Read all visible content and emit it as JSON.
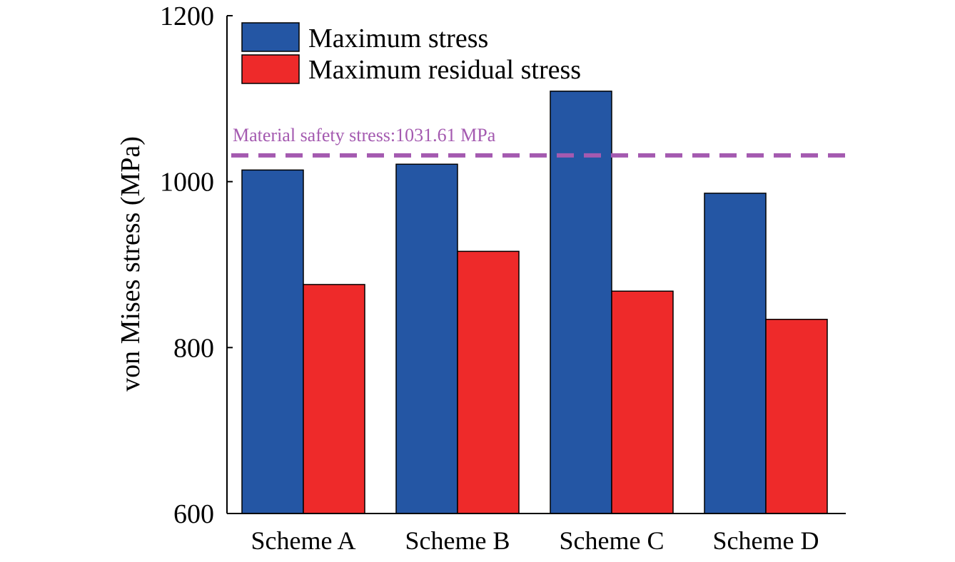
{
  "chart_data": {
    "type": "bar",
    "title": "",
    "xlabel": "",
    "ylabel": "von Mises stress (MPa)",
    "ylim": [
      600,
      1200
    ],
    "yticks": [
      600,
      800,
      1000,
      1200
    ],
    "categories": [
      "Scheme A",
      "Scheme B",
      "Scheme C",
      "Scheme D"
    ],
    "series": [
      {
        "name": "Maximum stress",
        "color": "#2456a4",
        "values": [
          1014,
          1021,
          1109,
          986
        ]
      },
      {
        "name": "Maximum residual stress",
        "color": "#ee2a2a",
        "values": [
          876,
          916,
          868,
          834
        ]
      }
    ],
    "legend_position": "top-left",
    "reference_line": {
      "value": 1031.61,
      "label": "Material safety stress:1031.61 MPa",
      "color": "#a45ab0",
      "style": "dashed"
    },
    "grid": false
  }
}
